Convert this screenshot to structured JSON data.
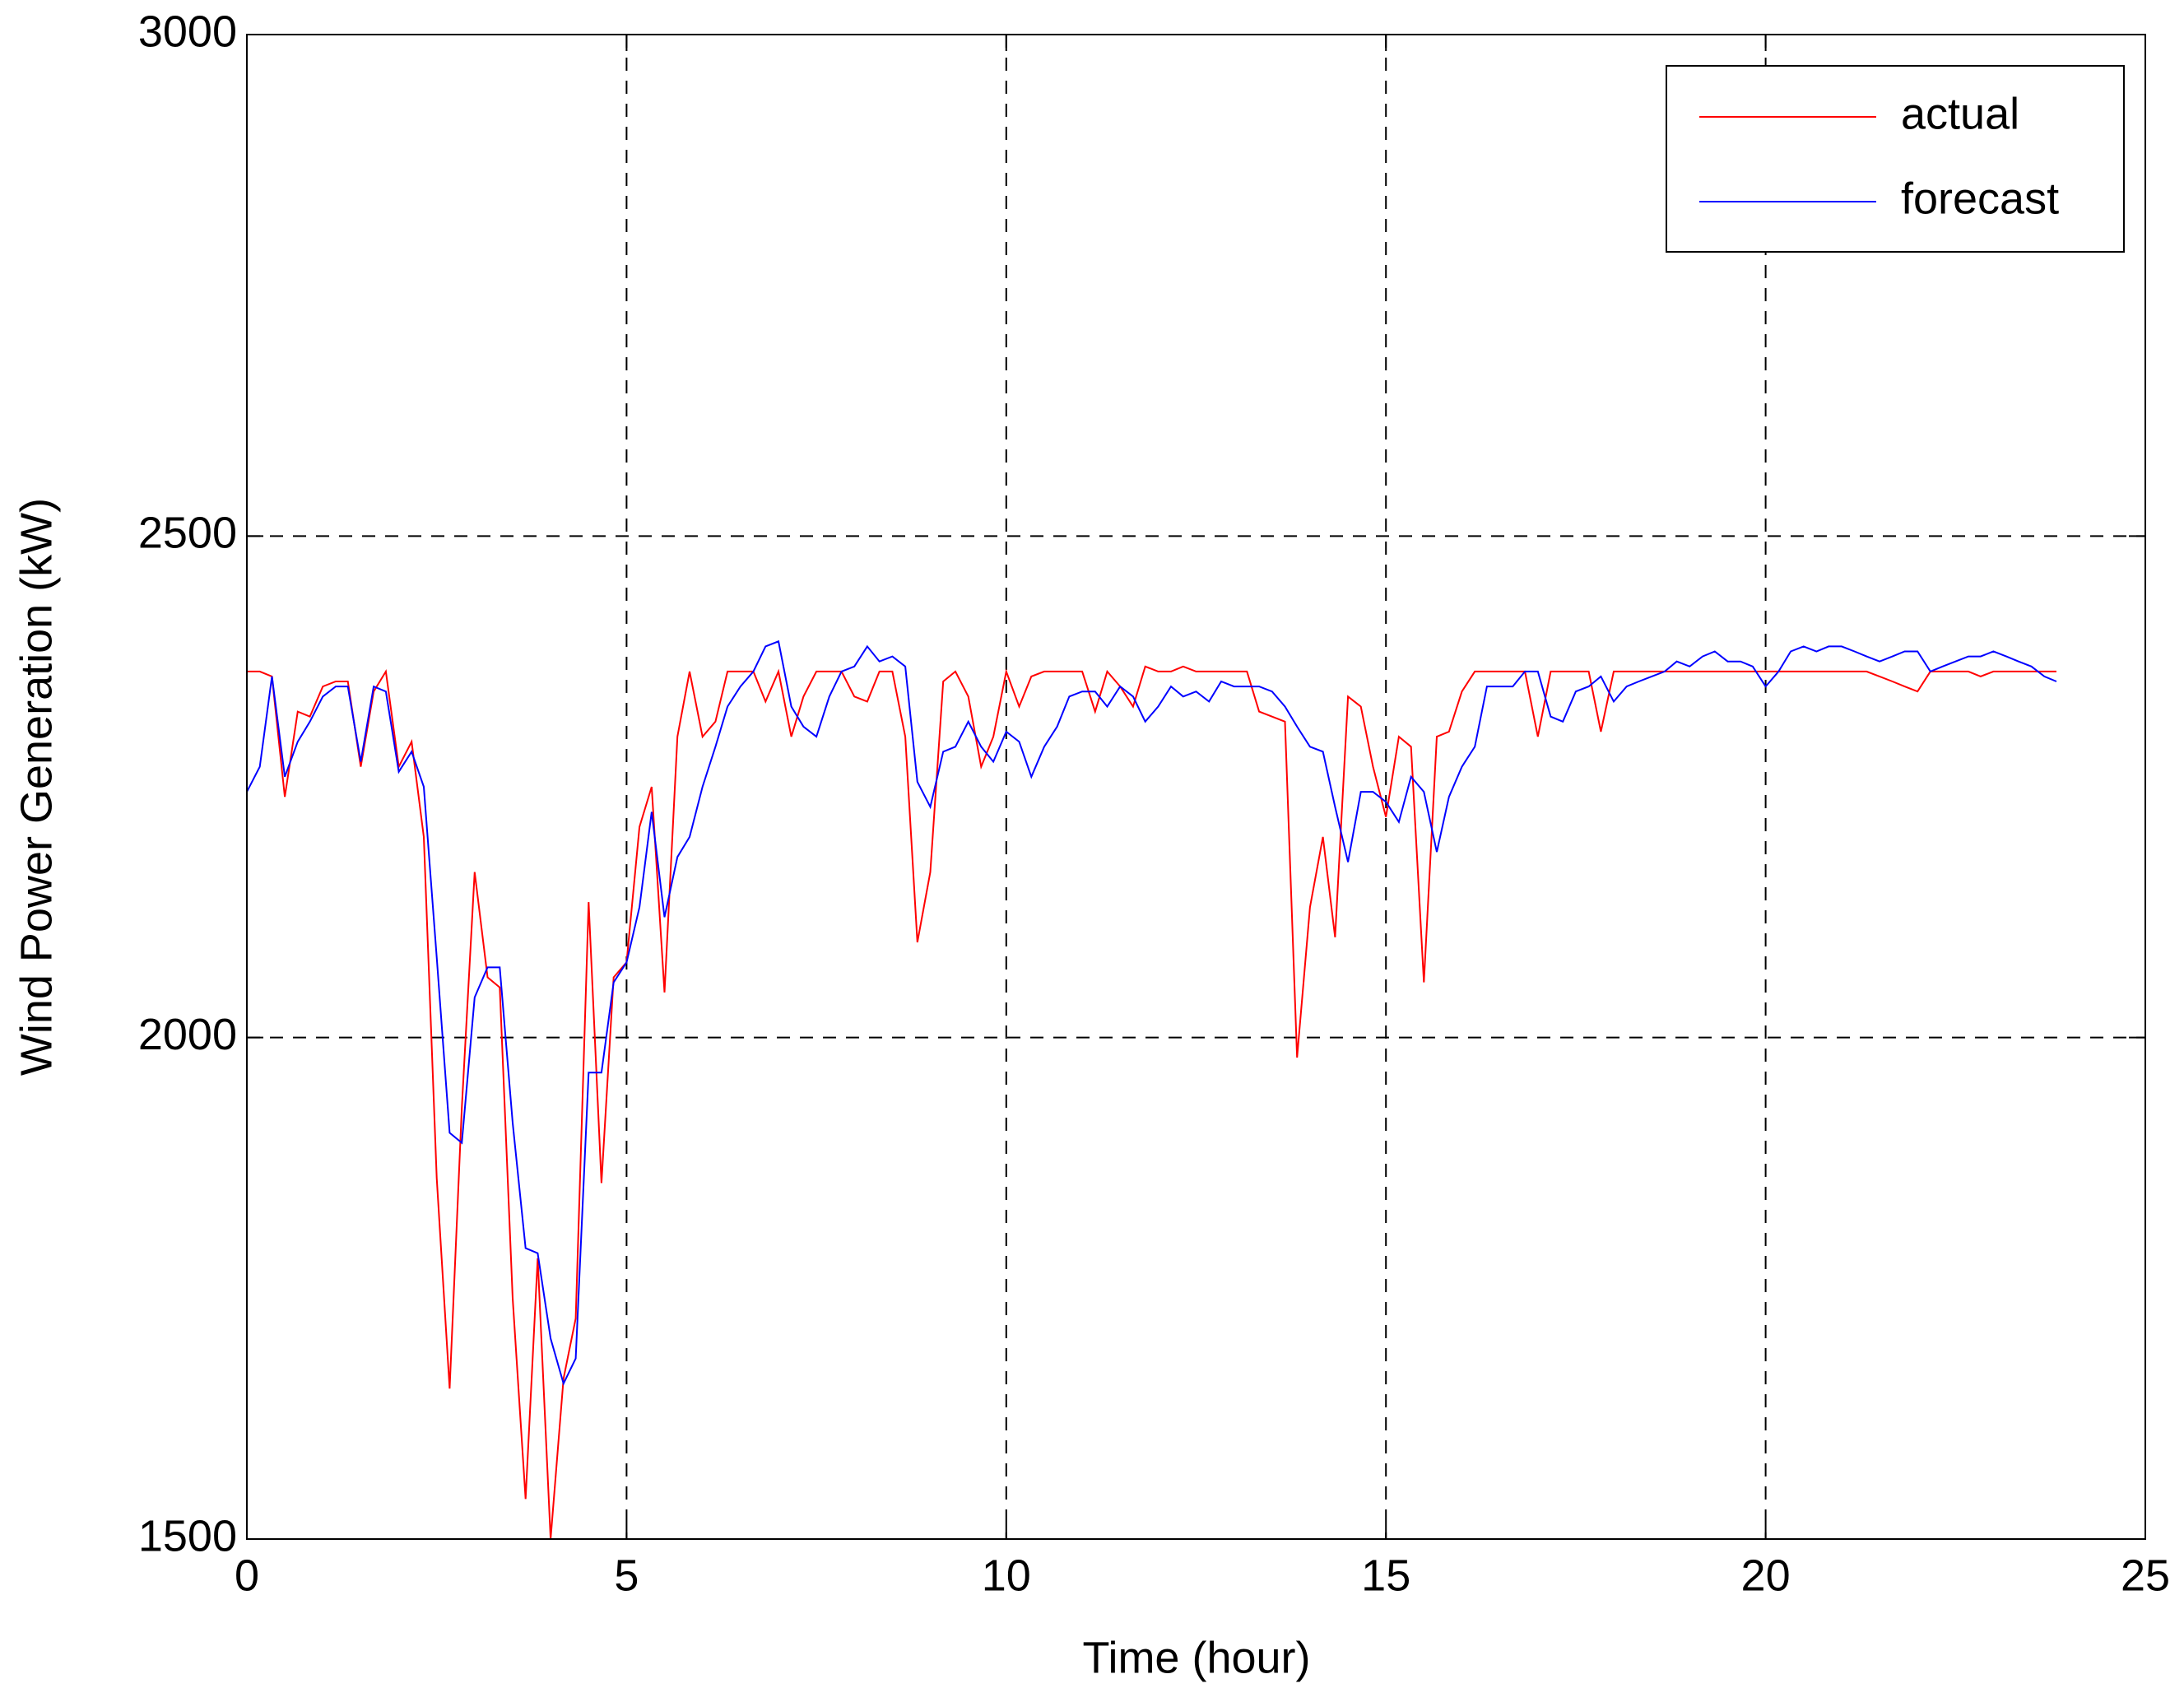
{
  "chart_data": {
    "type": "line",
    "xlabel": "Time (hour)",
    "ylabel": "Wind Power Generation (kW)",
    "xlim": [
      0,
      25
    ],
    "ylim": [
      1500,
      3000
    ],
    "xticks": [
      0,
      5,
      10,
      15,
      20,
      25
    ],
    "yticks": [
      1500,
      2000,
      2500,
      3000
    ],
    "grid": true,
    "legend": "upper right",
    "x": [
      0,
      0.17,
      0.33,
      0.5,
      0.67,
      0.83,
      1,
      1.17,
      1.33,
      1.5,
      1.67,
      1.83,
      2,
      2.17,
      2.33,
      2.5,
      2.67,
      2.83,
      3,
      3.17,
      3.33,
      3.5,
      3.67,
      3.83,
      4,
      4.17,
      4.33,
      4.5,
      4.67,
      4.83,
      5,
      5.17,
      5.33,
      5.5,
      5.67,
      5.83,
      6,
      6.17,
      6.33,
      6.5,
      6.67,
      6.83,
      7,
      7.17,
      7.33,
      7.5,
      7.67,
      7.83,
      8,
      8.17,
      8.33,
      8.5,
      8.67,
      8.83,
      9,
      9.17,
      9.33,
      9.5,
      9.67,
      9.83,
      10,
      10.17,
      10.33,
      10.5,
      10.67,
      10.83,
      11,
      11.17,
      11.33,
      11.5,
      11.67,
      11.83,
      12,
      12.17,
      12.33,
      12.5,
      12.67,
      12.83,
      13,
      13.17,
      13.33,
      13.5,
      13.67,
      13.83,
      14,
      14.17,
      14.33,
      14.5,
      14.67,
      14.83,
      15,
      15.17,
      15.33,
      15.5,
      15.67,
      15.83,
      16,
      16.17,
      16.33,
      16.5,
      16.67,
      16.83,
      17,
      17.17,
      17.33,
      17.5,
      17.67,
      17.83,
      18,
      18.17,
      18.33,
      18.5,
      18.67,
      18.83,
      19,
      19.17,
      19.33,
      19.5,
      19.67,
      19.83,
      20,
      20.17,
      20.33,
      20.5,
      20.67,
      20.83,
      21,
      21.17,
      21.33,
      21.5,
      21.67,
      21.83,
      22,
      22.17,
      22.33,
      22.5,
      22.67,
      22.83,
      23,
      23.17,
      23.33,
      23.5,
      23.67,
      23.83
    ],
    "series": [
      {
        "name": "actual",
        "color": "#ff0000",
        "values": [
          2365,
          2365,
          2360,
          2240,
          2325,
          2320,
          2350,
          2355,
          2355,
          2270,
          2345,
          2365,
          2270,
          2295,
          2200,
          1860,
          1650,
          1930,
          2165,
          2060,
          2050,
          1740,
          1540,
          1780,
          1500,
          1660,
          1720,
          2135,
          1855,
          2060,
          2075,
          2210,
          2250,
          2045,
          2300,
          2365,
          2300,
          2315,
          2365,
          2365,
          2365,
          2335,
          2365,
          2300,
          2340,
          2365,
          2365,
          2365,
          2340,
          2335,
          2365,
          2365,
          2300,
          2095,
          2165,
          2355,
          2365,
          2340,
          2270,
          2300,
          2365,
          2330,
          2360,
          2365,
          2365,
          2365,
          2365,
          2325,
          2365,
          2350,
          2330,
          2370,
          2365,
          2365,
          2370,
          2365,
          2365,
          2365,
          2365,
          2365,
          2325,
          2320,
          2315,
          1980,
          2130,
          2200,
          2100,
          2340,
          2330,
          2270,
          2220,
          2300,
          2290,
          2055,
          2300,
          2305,
          2345,
          2365,
          2365,
          2365,
          2365,
          2365,
          2300,
          2365,
          2365,
          2365,
          2365,
          2305,
          2365,
          2365,
          2365,
          2365,
          2365,
          2365,
          2365,
          2365,
          2365,
          2365,
          2365,
          2365,
          2365,
          2365,
          2365,
          2365,
          2365,
          2365,
          2365,
          2365,
          2365,
          2360,
          2355,
          2350,
          2345,
          2365,
          2365,
          2365,
          2365,
          2360,
          2365,
          2365,
          2365,
          2365,
          2365,
          2365
        ]
      },
      {
        "name": "forecast",
        "color": "#0000ff",
        "values": [
          2245,
          2270,
          2360,
          2260,
          2295,
          2315,
          2340,
          2350,
          2350,
          2275,
          2350,
          2345,
          2265,
          2285,
          2250,
          2080,
          1905,
          1895,
          2040,
          2070,
          2070,
          1915,
          1790,
          1785,
          1700,
          1655,
          1680,
          1965,
          1965,
          2055,
          2075,
          2130,
          2225,
          2120,
          2180,
          2200,
          2250,
          2290,
          2330,
          2350,
          2365,
          2390,
          2395,
          2330,
          2310,
          2300,
          2340,
          2365,
          2370,
          2390,
          2375,
          2380,
          2370,
          2255,
          2230,
          2285,
          2290,
          2315,
          2290,
          2275,
          2305,
          2295,
          2260,
          2290,
          2310,
          2340,
          2345,
          2345,
          2330,
          2350,
          2340,
          2315,
          2330,
          2350,
          2340,
          2345,
          2335,
          2355,
          2350,
          2350,
          2350,
          2345,
          2330,
          2310,
          2290,
          2285,
          2230,
          2175,
          2245,
          2245,
          2235,
          2215,
          2260,
          2245,
          2185,
          2240,
          2270,
          2290,
          2350,
          2350,
          2350,
          2365,
          2365,
          2320,
          2315,
          2345,
          2350,
          2360,
          2335,
          2350,
          2355,
          2360,
          2365,
          2375,
          2370,
          2380,
          2385,
          2375,
          2375,
          2370,
          2350,
          2365,
          2385,
          2390,
          2385,
          2390,
          2390,
          2385,
          2380,
          2375,
          2380,
          2385,
          2385,
          2365,
          2370,
          2375,
          2380,
          2380,
          2385,
          2380,
          2375,
          2370,
          2360,
          2355
        ]
      }
    ]
  }
}
